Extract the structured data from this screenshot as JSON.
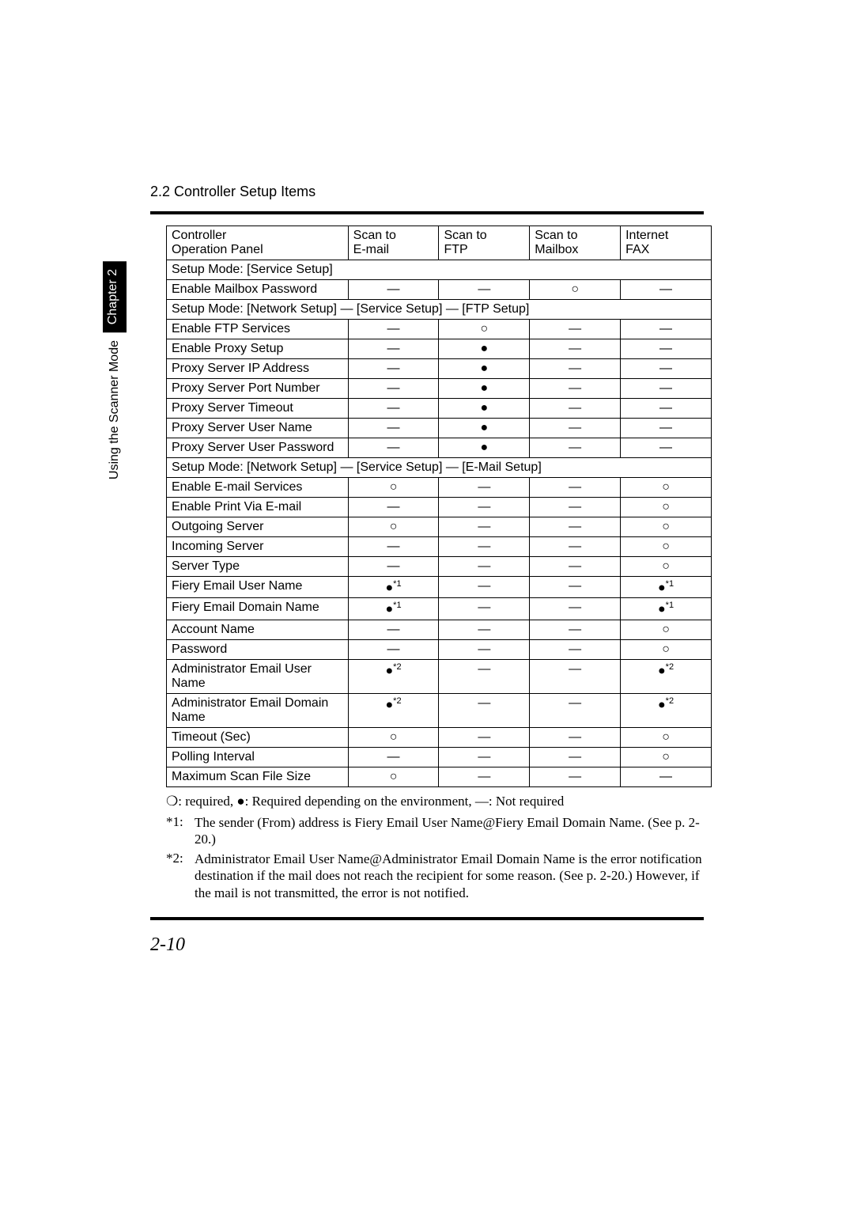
{
  "header": {
    "section_title": "2.2  Controller Setup Items"
  },
  "sidebar": {
    "chapter_label": "Chapter 2",
    "mode_label": "Using the Scanner Mode"
  },
  "table": {
    "columns": [
      {
        "line1": "Controller",
        "line2": "Operation Panel"
      },
      {
        "line1": "Scan to",
        "line2": "E-mail"
      },
      {
        "line1": "Scan to",
        "line2": "FTP"
      },
      {
        "line1": "Scan to",
        "line2": "Mailbox"
      },
      {
        "line1": "Internet",
        "line2": "FAX"
      }
    ],
    "sections": [
      {
        "title": "Setup Mode: [Service Setup]",
        "rows": [
          {
            "label": "Enable Mailbox Password",
            "cells": [
              "—",
              "—",
              "circle",
              "—"
            ]
          }
        ]
      },
      {
        "title": "Setup Mode: [Network Setup] — [Service Setup] — [FTP Setup]",
        "rows": [
          {
            "label": "Enable FTP Services",
            "cells": [
              "—",
              "circle",
              "—",
              "—"
            ]
          },
          {
            "label": "Enable Proxy Setup",
            "cells": [
              "—",
              "dot",
              "—",
              "—"
            ]
          },
          {
            "label": "Proxy Server IP Address",
            "cells": [
              "—",
              "dot",
              "—",
              "—"
            ]
          },
          {
            "label": "Proxy Server Port Number",
            "cells": [
              "—",
              "dot",
              "—",
              "—"
            ]
          },
          {
            "label": "Proxy Server Timeout",
            "cells": [
              "—",
              "dot",
              "—",
              "—"
            ]
          },
          {
            "label": "Proxy Server User Name",
            "cells": [
              "—",
              "dot",
              "—",
              "—"
            ]
          },
          {
            "label": "Proxy Server User Password",
            "cells": [
              "—",
              "dot",
              "—",
              "—"
            ]
          }
        ]
      },
      {
        "title": "Setup Mode: [Network Setup] — [Service Setup] — [E-Mail Setup]",
        "rows": [
          {
            "label": "Enable E-mail Services",
            "cells": [
              "circle",
              "—",
              "—",
              "circle"
            ]
          },
          {
            "label": "Enable Print Via E-mail",
            "cells": [
              "—",
              "—",
              "—",
              "circle"
            ]
          },
          {
            "label": "Outgoing Server",
            "cells": [
              "circle",
              "—",
              "—",
              "circle"
            ]
          },
          {
            "label": "Incoming Server",
            "cells": [
              "—",
              "—",
              "—",
              "circle"
            ]
          },
          {
            "label": "Server Type",
            "cells": [
              "—",
              "—",
              "—",
              "circle"
            ]
          },
          {
            "label": "Fiery Email User Name",
            "cells": [
              "dot1",
              "—",
              "—",
              "dot1"
            ]
          },
          {
            "label": "Fiery Email Domain Name",
            "cells": [
              "dot1",
              "—",
              "—",
              "dot1"
            ]
          },
          {
            "label": "Account Name",
            "cells": [
              "—",
              "—",
              "—",
              "circle"
            ]
          },
          {
            "label": "Password",
            "cells": [
              "—",
              "—",
              "—",
              "circle"
            ]
          },
          {
            "label": "Administrator Email User Name",
            "cells": [
              "dot2",
              "—",
              "—",
              "dot2"
            ]
          },
          {
            "label": "Administrator Email Domain Name",
            "cells": [
              "dot2",
              "—",
              "—",
              "dot2"
            ]
          },
          {
            "label": "Timeout (Sec)",
            "cells": [
              "circle",
              "—",
              "—",
              "circle"
            ]
          },
          {
            "label": "Polling Interval",
            "cells": [
              "—",
              "—",
              "—",
              "circle"
            ]
          },
          {
            "label": "Maximum Scan File Size",
            "cells": [
              "circle",
              "—",
              "—",
              "—"
            ]
          }
        ]
      }
    ],
    "symbols": {
      "circle": "○",
      "dot": "●",
      "dash": "—",
      "star1": "*1",
      "star2": "*2"
    }
  },
  "legend": "❍: required, ●: Required depending on the environment, —: Not required",
  "footnotes": [
    {
      "label": "*1:",
      "text": "The sender (From) address is Fiery Email User Name@Fiery Email Domain Name. (See p. 2-20.)"
    },
    {
      "label": "*2:",
      "text": "Administrator Email User Name@Administrator Email Domain Name is the error notification destination if the mail does not reach the recipient for some reason. (See p. 2-20.) However, if the mail is not transmitted, the error is not notified."
    }
  ],
  "page_number": "2-10"
}
